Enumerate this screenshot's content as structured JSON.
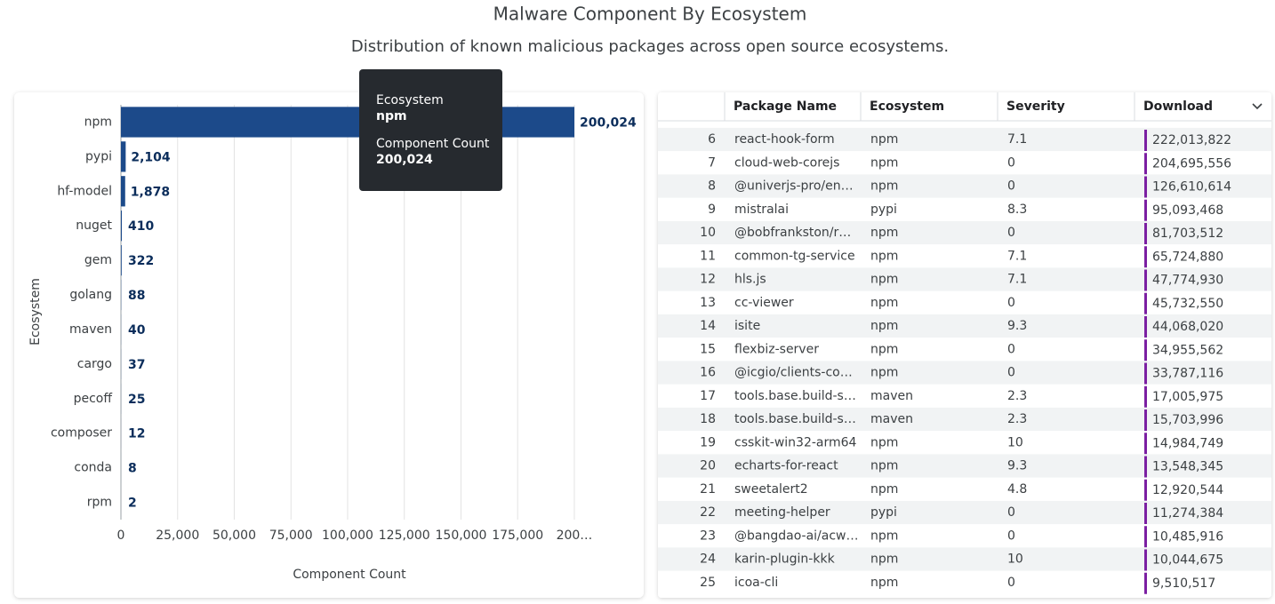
{
  "title": "Malware Component By Ecosystem",
  "subtitle": "Distribution of known malicious packages across open source ecosystems.",
  "chart_data": {
    "type": "bar",
    "orientation": "horizontal",
    "categories": [
      "npm",
      "pypi",
      "hf-model",
      "nuget",
      "gem",
      "golang",
      "maven",
      "cargo",
      "pecoff",
      "composer",
      "conda",
      "rpm"
    ],
    "values": [
      200024,
      2104,
      1878,
      410,
      322,
      88,
      40,
      37,
      25,
      12,
      8,
      2
    ],
    "value_labels": [
      "200,024",
      "2,104",
      "1,878",
      "410",
      "322",
      "88",
      "40",
      "37",
      "25",
      "12",
      "8",
      "2"
    ],
    "color": "#1c4a8a",
    "xlabel": "Component Count",
    "ylabel": "Ecosystem",
    "xlim": [
      0,
      200024
    ],
    "xticks": [
      0,
      {
        "value": 25000,
        "label": "25,000"
      },
      {
        "value": 50000,
        "label": "50,000"
      },
      {
        "value": 75000,
        "label": "75,000"
      },
      {
        "value": 100000,
        "label": "100,000"
      },
      {
        "value": 125000,
        "label": "125,000"
      },
      {
        "value": 150000,
        "label": "150,000"
      },
      {
        "value": 175000,
        "label": "175,000"
      },
      {
        "value": 200000,
        "label": "200…"
      }
    ],
    "grid": true
  },
  "tooltip": [
    {
      "label": "Ecosystem",
      "value": "npm"
    },
    {
      "label": "Component Count",
      "value": "200,024"
    }
  ],
  "table": {
    "columns": [
      "Package Name",
      "Ecosystem",
      "Severity",
      "Download"
    ],
    "rows": [
      [
        6,
        "react-hook-form",
        "npm",
        7.1,
        "222,013,822"
      ],
      [
        7,
        "cloud-web-corejs",
        "npm",
        0,
        "204,695,556"
      ],
      [
        8,
        "@univerjs-pro/en…",
        "npm",
        0,
        "126,610,614"
      ],
      [
        9,
        "mistralai",
        "pypi",
        8.3,
        "95,093,468"
      ],
      [
        10,
        "@bobfrankston/r…",
        "npm",
        0,
        "81,703,512"
      ],
      [
        11,
        "common-tg-service",
        "npm",
        7.1,
        "65,724,880"
      ],
      [
        12,
        "hls.js",
        "npm",
        7.1,
        "47,774,930"
      ],
      [
        13,
        "cc-viewer",
        "npm",
        0,
        "45,732,550"
      ],
      [
        14,
        "isite",
        "npm",
        9.3,
        "44,068,020"
      ],
      [
        15,
        "flexbiz-server",
        "npm",
        0,
        "34,955,562"
      ],
      [
        16,
        "@icgio/clients-co…",
        "npm",
        0,
        "33,787,116"
      ],
      [
        17,
        "tools.base.build-s…",
        "maven",
        2.3,
        "17,005,975"
      ],
      [
        18,
        "tools.base.build-s…",
        "maven",
        2.3,
        "15,703,996"
      ],
      [
        19,
        "csskit-win32-arm64",
        "npm",
        10,
        "14,984,749"
      ],
      [
        20,
        "echarts-for-react",
        "npm",
        9.3,
        "13,548,345"
      ],
      [
        21,
        "sweetalert2",
        "npm",
        4.8,
        "12,920,544"
      ],
      [
        22,
        "meeting-helper",
        "pypi",
        0,
        "11,274,384"
      ],
      [
        23,
        "@bangdao-ai/acw…",
        "npm",
        0,
        "10,485,916"
      ],
      [
        24,
        "karin-plugin-kkk",
        "npm",
        10,
        "10,044,675"
      ],
      [
        25,
        "icoa-cli",
        "npm",
        0,
        "9,510,517"
      ]
    ]
  }
}
